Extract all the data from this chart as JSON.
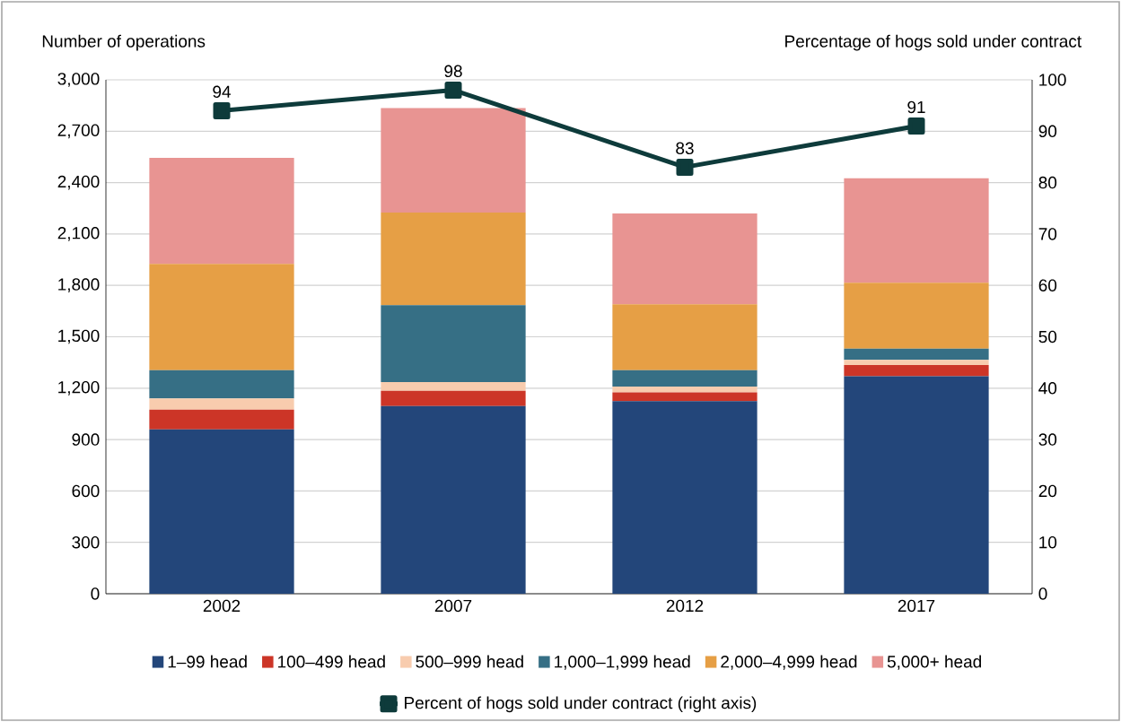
{
  "chart_data": {
    "type": "bar",
    "stacked": true,
    "ylabel": "Number of operations",
    "y2label": "Percentage of hogs sold under contract",
    "categories": [
      "2002",
      "2007",
      "2012",
      "2017"
    ],
    "series": [
      {
        "name": "1–99 head",
        "color": "#23467a",
        "values": [
          960,
          1095,
          1125,
          1270
        ]
      },
      {
        "name": "100–499 head",
        "color": "#cc3527",
        "values": [
          115,
          90,
          50,
          65
        ]
      },
      {
        "name": "500–999 head",
        "color": "#f8ccae",
        "values": [
          65,
          50,
          35,
          30
        ]
      },
      {
        "name": "1,000–1,999 head",
        "color": "#366f85",
        "values": [
          165,
          450,
          95,
          65
        ]
      },
      {
        "name": "2,000–4,999 head",
        "color": "#e69f45",
        "values": [
          620,
          540,
          385,
          385
        ]
      },
      {
        "name": "5,000+ head",
        "color": "#e89492",
        "values": [
          620,
          610,
          530,
          610
        ]
      },
      {
        "name": "Percent of hogs sold under contract (right axis)",
        "type": "line",
        "axis": "y2",
        "color": "#0e3b3b",
        "marker": "square",
        "values": [
          94,
          98,
          83,
          91
        ],
        "value_labels": [
          "94",
          "98",
          "83",
          "91"
        ]
      }
    ],
    "ylim": [
      0,
      3000
    ],
    "yticks": [
      0,
      300,
      600,
      900,
      {
        "value": 1200,
        "label": "1,200"
      },
      {
        "value": 1500,
        "label": "1,500"
      },
      {
        "value": 1800,
        "label": "1,800"
      },
      {
        "value": 2100,
        "label": "2,100"
      },
      {
        "value": 2400,
        "label": "2,400"
      },
      {
        "value": 2700,
        "label": "2,700"
      },
      {
        "value": 3000,
        "label": "3,000"
      }
    ],
    "y2lim": [
      0,
      100
    ],
    "y2ticks": [
      0,
      10,
      20,
      30,
      40,
      50,
      60,
      70,
      80,
      90,
      100
    ],
    "grid": "y",
    "legend": "bottom"
  }
}
